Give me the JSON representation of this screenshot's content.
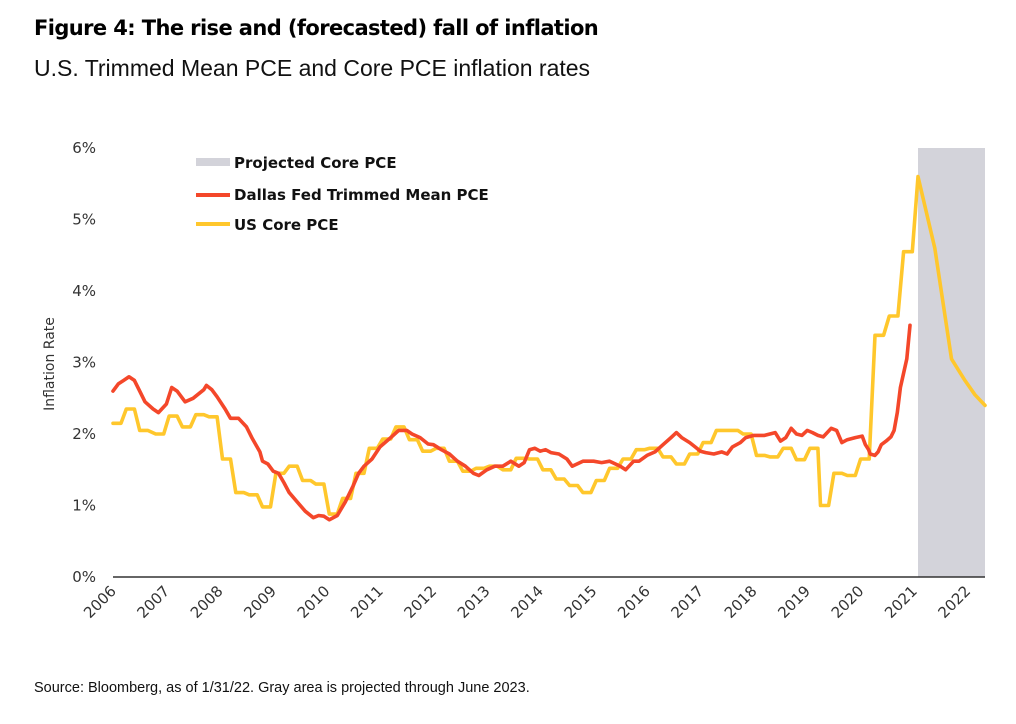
{
  "header": {
    "title": "Figure 4: The rise and (forecasted) fall of inflation",
    "subtitle": "U.S. Trimmed Mean PCE and Core PCE inflation rates"
  },
  "footer": {
    "source": "Source: Bloomberg, as of 1/31/22. Gray area is projected through June 2023."
  },
  "colors": {
    "trimmed_mean": "#F4472A",
    "core_pce": "#FFC72C",
    "projected_band": "#D3D3DA",
    "axis": "#333333"
  },
  "chart_data": {
    "type": "line",
    "title": "Figure 4: The rise and (forecasted) fall of inflation",
    "subtitle": "U.S. Trimmed Mean PCE and Core PCE inflation rates",
    "xlabel": "",
    "ylabel": "Inflation Rate",
    "xlim": [
      2006,
      2022.7
    ],
    "ylim": [
      0,
      6
    ],
    "grid": false,
    "legend_position": "top-left",
    "x_tick_labels": [
      "2006",
      "2007",
      "2008",
      "2009",
      "2010",
      "2011",
      "2012",
      "2013",
      "2014",
      "2015",
      "2016",
      "2017",
      "2018",
      "2019",
      "2020",
      "2021",
      "2022"
    ],
    "x_ticks": [
      2006,
      2007,
      2008,
      2009,
      2010,
      2011,
      2012,
      2013,
      2014,
      2015,
      2016,
      2017,
      2018,
      2019,
      2020,
      2021,
      2022
    ],
    "y_ticks": [
      0,
      1,
      2,
      3,
      4,
      5,
      6
    ],
    "y_tick_labels": [
      "0%",
      "1%",
      "2%",
      "3%",
      "4%",
      "5%",
      "6%"
    ],
    "projected_region": {
      "label": "Projected Core PCE",
      "x_start": 2021.02,
      "x_end": 2022.28
    },
    "legend": [
      "Projected Core PCE",
      "Dallas Fed Trimmed Mean PCE",
      "US Core PCE"
    ],
    "series": [
      {
        "name": "Dallas Fed Trimmed Mean PCE",
        "points": [
          [
            2006.0,
            2.6
          ],
          [
            2006.1,
            2.7
          ],
          [
            2006.2,
            2.75
          ],
          [
            2006.3,
            2.8
          ],
          [
            2006.4,
            2.75
          ],
          [
            2006.5,
            2.6
          ],
          [
            2006.6,
            2.45
          ],
          [
            2006.75,
            2.35
          ],
          [
            2006.85,
            2.3
          ],
          [
            2007.0,
            2.42
          ],
          [
            2007.1,
            2.65
          ],
          [
            2007.2,
            2.6
          ],
          [
            2007.35,
            2.45
          ],
          [
            2007.5,
            2.5
          ],
          [
            2007.7,
            2.62
          ],
          [
            2007.75,
            2.68
          ],
          [
            2007.85,
            2.62
          ],
          [
            2007.95,
            2.52
          ],
          [
            2008.1,
            2.35
          ],
          [
            2008.2,
            2.22
          ],
          [
            2008.35,
            2.22
          ],
          [
            2008.5,
            2.1
          ],
          [
            2008.6,
            1.95
          ],
          [
            2008.75,
            1.75
          ],
          [
            2008.8,
            1.62
          ],
          [
            2008.9,
            1.58
          ],
          [
            2009.0,
            1.48
          ],
          [
            2009.1,
            1.45
          ],
          [
            2009.2,
            1.32
          ],
          [
            2009.3,
            1.18
          ],
          [
            2009.45,
            1.05
          ],
          [
            2009.6,
            0.92
          ],
          [
            2009.75,
            0.83
          ],
          [
            2009.85,
            0.86
          ],
          [
            2009.95,
            0.85
          ],
          [
            2010.05,
            0.8
          ],
          [
            2010.2,
            0.86
          ],
          [
            2010.35,
            1.05
          ],
          [
            2010.5,
            1.28
          ],
          [
            2010.6,
            1.45
          ],
          [
            2010.7,
            1.55
          ],
          [
            2010.85,
            1.65
          ],
          [
            2011.0,
            1.82
          ],
          [
            2011.2,
            1.95
          ],
          [
            2011.35,
            2.05
          ],
          [
            2011.5,
            2.05
          ],
          [
            2011.6,
            2.0
          ],
          [
            2011.75,
            1.95
          ],
          [
            2011.9,
            1.86
          ],
          [
            2012.0,
            1.85
          ],
          [
            2012.15,
            1.78
          ],
          [
            2012.3,
            1.72
          ],
          [
            2012.45,
            1.62
          ],
          [
            2012.6,
            1.55
          ],
          [
            2012.75,
            1.45
          ],
          [
            2012.85,
            1.42
          ],
          [
            2013.0,
            1.5
          ],
          [
            2013.15,
            1.55
          ],
          [
            2013.3,
            1.55
          ],
          [
            2013.45,
            1.62
          ],
          [
            2013.6,
            1.55
          ],
          [
            2013.7,
            1.6
          ],
          [
            2013.8,
            1.78
          ],
          [
            2013.9,
            1.8
          ],
          [
            2014.0,
            1.76
          ],
          [
            2014.1,
            1.78
          ],
          [
            2014.2,
            1.74
          ],
          [
            2014.35,
            1.72
          ],
          [
            2014.5,
            1.65
          ],
          [
            2014.6,
            1.55
          ],
          [
            2014.8,
            1.62
          ],
          [
            2015.0,
            1.62
          ],
          [
            2015.15,
            1.6
          ],
          [
            2015.3,
            1.62
          ],
          [
            2015.5,
            1.55
          ],
          [
            2015.6,
            1.5
          ],
          [
            2015.75,
            1.62
          ],
          [
            2015.85,
            1.62
          ],
          [
            2016.0,
            1.7
          ],
          [
            2016.15,
            1.75
          ],
          [
            2016.3,
            1.85
          ],
          [
            2016.45,
            1.95
          ],
          [
            2016.55,
            2.02
          ],
          [
            2016.65,
            1.95
          ],
          [
            2016.8,
            1.88
          ],
          [
            2016.9,
            1.82
          ],
          [
            2017.0,
            1.76
          ],
          [
            2017.1,
            1.74
          ],
          [
            2017.25,
            1.72
          ],
          [
            2017.4,
            1.75
          ],
          [
            2017.5,
            1.72
          ],
          [
            2017.6,
            1.82
          ],
          [
            2017.75,
            1.88
          ],
          [
            2017.85,
            1.95
          ],
          [
            2018.0,
            1.98
          ],
          [
            2018.2,
            1.98
          ],
          [
            2018.4,
            2.02
          ],
          [
            2018.5,
            1.9
          ],
          [
            2018.6,
            1.95
          ],
          [
            2018.7,
            2.08
          ],
          [
            2018.8,
            2.0
          ],
          [
            2018.9,
            1.98
          ],
          [
            2019.0,
            2.05
          ],
          [
            2019.1,
            2.02
          ],
          [
            2019.2,
            1.98
          ],
          [
            2019.3,
            1.96
          ],
          [
            2019.45,
            2.08
          ],
          [
            2019.55,
            2.05
          ],
          [
            2019.65,
            1.88
          ],
          [
            2019.75,
            1.92
          ],
          [
            2019.9,
            1.95
          ],
          [
            2020.05,
            1.97
          ],
          [
            2020.15,
            1.85
          ],
          [
            2020.25,
            1.78
          ],
          [
            2020.3,
            1.72
          ],
          [
            2020.45,
            1.7
          ],
          [
            2020.55,
            1.75
          ],
          [
            2020.65,
            1.85
          ],
          [
            2020.8,
            1.9
          ],
          [
            2020.95,
            1.96
          ],
          [
            2021.05,
            2.05
          ],
          [
            2021.15,
            2.3
          ],
          [
            2021.25,
            2.65
          ],
          [
            2021.35,
            2.85
          ],
          [
            2021.45,
            3.05
          ],
          [
            2021.55,
            3.52
          ]
        ]
      },
      {
        "name": "US Core PCE",
        "points": [
          [
            2006.0,
            2.15
          ],
          [
            2006.15,
            2.15
          ],
          [
            2006.25,
            2.35
          ],
          [
            2006.4,
            2.35
          ],
          [
            2006.5,
            2.05
          ],
          [
            2006.65,
            2.05
          ],
          [
            2006.8,
            2.0
          ],
          [
            2006.95,
            2.0
          ],
          [
            2007.05,
            2.25
          ],
          [
            2007.2,
            2.25
          ],
          [
            2007.3,
            2.1
          ],
          [
            2007.45,
            2.1
          ],
          [
            2007.55,
            2.27
          ],
          [
            2007.7,
            2.27
          ],
          [
            2007.8,
            2.24
          ],
          [
            2007.95,
            2.24
          ],
          [
            2008.05,
            1.65
          ],
          [
            2008.2,
            1.65
          ],
          [
            2008.3,
            1.18
          ],
          [
            2008.45,
            1.18
          ],
          [
            2008.55,
            1.15
          ],
          [
            2008.7,
            1.15
          ],
          [
            2008.8,
            0.98
          ],
          [
            2008.95,
            0.98
          ],
          [
            2009.05,
            1.45
          ],
          [
            2009.2,
            1.45
          ],
          [
            2009.3,
            1.55
          ],
          [
            2009.45,
            1.55
          ],
          [
            2009.55,
            1.35
          ],
          [
            2009.7,
            1.35
          ],
          [
            2009.8,
            1.3
          ],
          [
            2009.95,
            1.3
          ],
          [
            2010.05,
            0.88
          ],
          [
            2010.2,
            0.88
          ],
          [
            2010.3,
            1.1
          ],
          [
            2010.45,
            1.1
          ],
          [
            2010.55,
            1.45
          ],
          [
            2010.7,
            1.45
          ],
          [
            2010.8,
            1.8
          ],
          [
            2010.95,
            1.8
          ],
          [
            2011.05,
            1.93
          ],
          [
            2011.2,
            1.93
          ],
          [
            2011.3,
            2.1
          ],
          [
            2011.45,
            2.1
          ],
          [
            2011.55,
            1.92
          ],
          [
            2011.7,
            1.92
          ],
          [
            2011.8,
            1.76
          ],
          [
            2011.95,
            1.76
          ],
          [
            2012.05,
            1.8
          ],
          [
            2012.2,
            1.8
          ],
          [
            2012.3,
            1.62
          ],
          [
            2012.45,
            1.62
          ],
          [
            2012.55,
            1.48
          ],
          [
            2012.7,
            1.48
          ],
          [
            2012.8,
            1.52
          ],
          [
            2012.95,
            1.52
          ],
          [
            2013.05,
            1.55
          ],
          [
            2013.2,
            1.55
          ],
          [
            2013.3,
            1.5
          ],
          [
            2013.45,
            1.5
          ],
          [
            2013.55,
            1.66
          ],
          [
            2013.7,
            1.66
          ],
          [
            2013.8,
            1.65
          ],
          [
            2013.95,
            1.65
          ],
          [
            2014.05,
            1.5
          ],
          [
            2014.2,
            1.5
          ],
          [
            2014.3,
            1.37
          ],
          [
            2014.45,
            1.37
          ],
          [
            2014.55,
            1.28
          ],
          [
            2014.7,
            1.28
          ],
          [
            2014.8,
            1.18
          ],
          [
            2014.95,
            1.18
          ],
          [
            2015.05,
            1.35
          ],
          [
            2015.2,
            1.35
          ],
          [
            2015.3,
            1.52
          ],
          [
            2015.45,
            1.52
          ],
          [
            2015.55,
            1.65
          ],
          [
            2015.7,
            1.65
          ],
          [
            2015.8,
            1.78
          ],
          [
            2015.95,
            1.78
          ],
          [
            2016.05,
            1.8
          ],
          [
            2016.2,
            1.8
          ],
          [
            2016.3,
            1.68
          ],
          [
            2016.45,
            1.68
          ],
          [
            2016.55,
            1.58
          ],
          [
            2016.7,
            1.58
          ],
          [
            2016.8,
            1.72
          ],
          [
            2016.95,
            1.72
          ],
          [
            2017.05,
            1.88
          ],
          [
            2017.2,
            1.88
          ],
          [
            2017.3,
            2.05
          ],
          [
            2017.45,
            2.05
          ],
          [
            2017.55,
            2.05
          ],
          [
            2017.7,
            2.05
          ],
          [
            2017.8,
            2.0
          ],
          [
            2017.95,
            2.0
          ],
          [
            2018.05,
            1.7
          ],
          [
            2018.2,
            1.7
          ],
          [
            2018.3,
            1.68
          ],
          [
            2018.45,
            1.68
          ],
          [
            2018.55,
            1.8
          ],
          [
            2018.7,
            1.8
          ],
          [
            2018.8,
            1.64
          ],
          [
            2018.95,
            1.64
          ],
          [
            2019.05,
            1.8
          ],
          [
            2019.2,
            1.8
          ],
          [
            2019.25,
            1.0
          ],
          [
            2019.4,
            1.0
          ],
          [
            2019.5,
            1.45
          ],
          [
            2019.65,
            1.45
          ],
          [
            2019.75,
            1.42
          ],
          [
            2019.9,
            1.42
          ],
          [
            2020.0,
            1.65
          ],
          [
            2020.15,
            1.65
          ],
          [
            2020.25,
            3.38
          ],
          [
            2020.4,
            3.38
          ],
          [
            2020.5,
            3.65
          ],
          [
            2020.65,
            3.65
          ],
          [
            2020.75,
            4.55
          ],
          [
            2020.9,
            4.55
          ],
          [
            2021.0,
            5.6
          ],
          [
            2021.25,
            4.6
          ],
          [
            2021.5,
            3.05
          ],
          [
            2021.7,
            2.75
          ],
          [
            2021.85,
            2.55
          ],
          [
            2022.0,
            2.4
          ]
        ]
      }
    ]
  }
}
